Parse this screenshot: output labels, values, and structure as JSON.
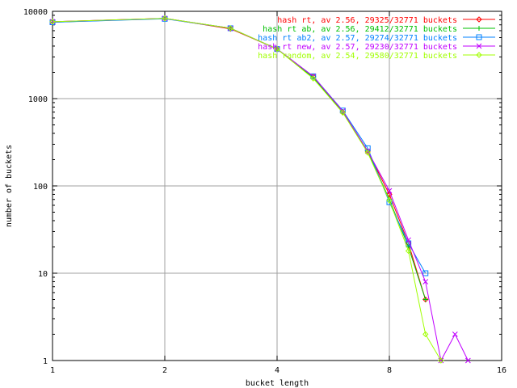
{
  "chart_data": {
    "type": "line",
    "xlabel": "bucket length",
    "ylabel": "number of buckets",
    "xscale": "log2",
    "yscale": "log10",
    "xlim": [
      1,
      16
    ],
    "ylim": [
      1,
      10000
    ],
    "x_ticks": [
      1,
      2,
      4,
      8,
      16
    ],
    "y_ticks": [
      1,
      10,
      100,
      1000,
      10000
    ],
    "grid": true,
    "legend_position": "top-right",
    "series": [
      {
        "name": "hash rt, av 2.56, 29325/32771 buckets",
        "color": "#ff0000",
        "marker": "diamond",
        "x": [
          1,
          2,
          3,
          4,
          5,
          6,
          7,
          8,
          9,
          10
        ],
        "y": [
          7600,
          8300,
          6300,
          3700,
          1800,
          700,
          250,
          80,
          22,
          5
        ]
      },
      {
        "name": "hash rt ab, av 2.56, 29412/32771 buckets",
        "color": "#00c000",
        "marker": "plus",
        "x": [
          1,
          2,
          3,
          4,
          5,
          6,
          7,
          8,
          9,
          10
        ],
        "y": [
          7500,
          8300,
          6400,
          3700,
          1750,
          710,
          250,
          70,
          20,
          5
        ]
      },
      {
        "name": "hash rt ab2, av 2.57, 29274/32771 buckets",
        "color": "#0080ff",
        "marker": "square",
        "x": [
          1,
          2,
          3,
          4,
          5,
          6,
          7,
          8,
          9,
          10
        ],
        "y": [
          7500,
          8200,
          6400,
          3700,
          1800,
          730,
          270,
          65,
          22,
          10
        ]
      },
      {
        "name": "hash rt new, av 2.57, 29230/32771 buckets",
        "color": "#c000ff",
        "marker": "cross",
        "x": [
          1,
          2,
          3,
          4,
          5,
          6,
          7,
          8,
          9,
          10,
          11,
          12,
          13
        ],
        "y": [
          7600,
          8300,
          6400,
          3700,
          1800,
          720,
          250,
          88,
          24,
          8,
          1,
          2,
          1
        ]
      },
      {
        "name": "hash random, av 2.54, 29580/32771 buckets",
        "color": "#a0ff00",
        "marker": "diamond",
        "x": [
          1,
          2,
          3,
          4,
          5,
          6,
          7,
          8,
          9,
          10,
          11
        ],
        "y": [
          7600,
          8300,
          6400,
          3700,
          1700,
          690,
          240,
          68,
          18,
          2,
          1
        ]
      }
    ]
  }
}
